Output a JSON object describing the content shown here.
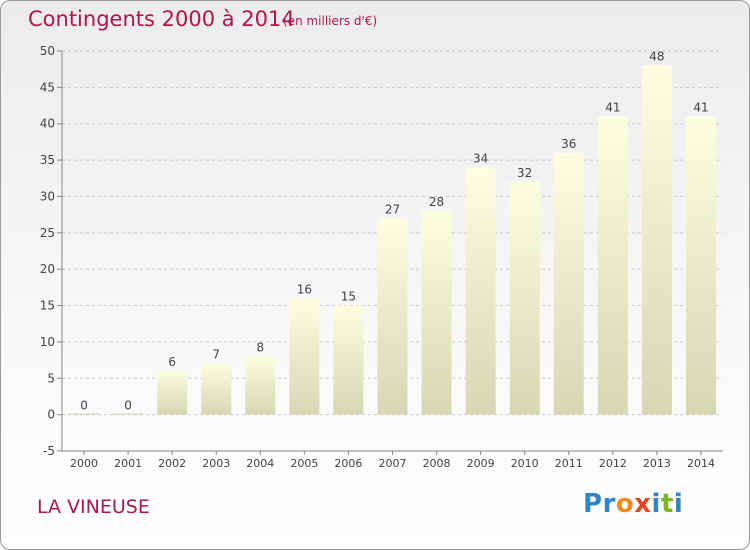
{
  "header": {
    "title": "Contingents 2000 à 2014",
    "unit_note": "(en milliers d'€)"
  },
  "footer": {
    "commune": "LA VINEUSE",
    "brand_letters": [
      "P",
      "r",
      "o",
      "x",
      "i",
      "t",
      "i"
    ]
  },
  "colors": {
    "title": "#b0164c",
    "bar_light": "#fdfde0",
    "bar_dark": "#d7d7b4",
    "brand_blue": "#2f86c8",
    "brand_orange": "#f08a1c",
    "brand_red": "#e8451c",
    "brand_green": "#7bb51f"
  },
  "chart_data": {
    "type": "bar",
    "categories": [
      "2000",
      "2001",
      "2002",
      "2003",
      "2004",
      "2005",
      "2006",
      "2007",
      "2008",
      "2009",
      "2010",
      "2011",
      "2012",
      "2013",
      "2014"
    ],
    "values": [
      0,
      0,
      6,
      7,
      8,
      16,
      15,
      27,
      28,
      34,
      32,
      36,
      41,
      48,
      41
    ],
    "title": "Contingents 2000 à 2014",
    "xlabel": "",
    "ylabel": "",
    "ylim": [
      -5,
      50
    ],
    "yticks": [
      -5,
      0,
      5,
      10,
      15,
      20,
      25,
      30,
      35,
      40,
      45,
      50
    ],
    "grid": "horizontal dashed",
    "data_labels": true
  }
}
